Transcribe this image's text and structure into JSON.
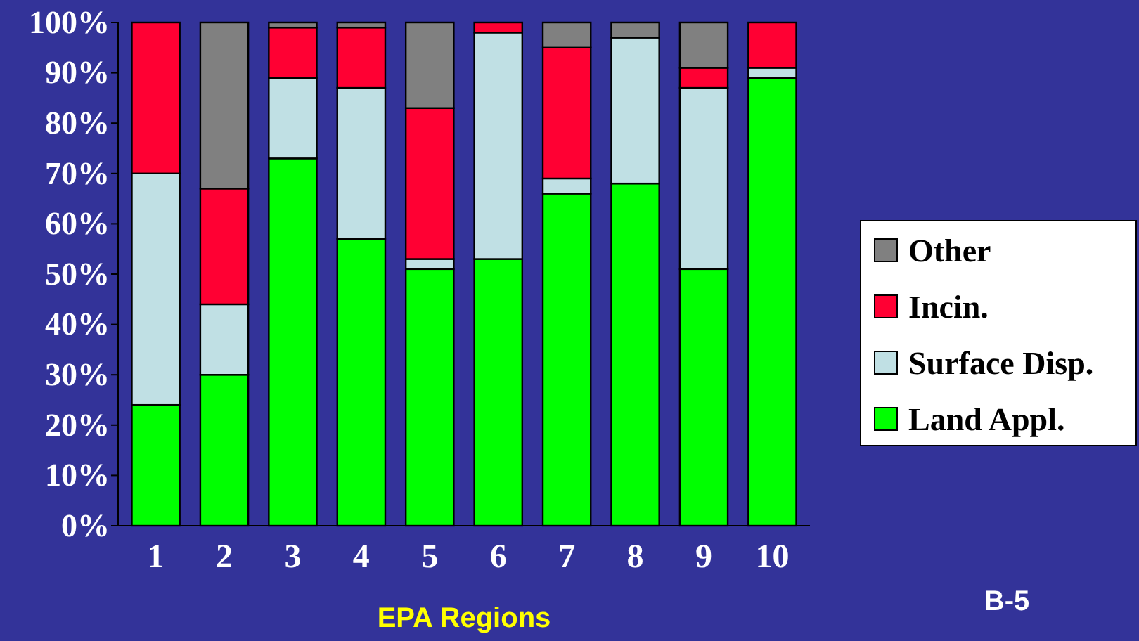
{
  "chart_data": {
    "type": "bar",
    "stacked": true,
    "xlabel": "EPA Regions",
    "annotations": [
      "B-5"
    ],
    "categories": [
      "1",
      "2",
      "3",
      "4",
      "5",
      "6",
      "7",
      "8",
      "9",
      "10"
    ],
    "series": [
      {
        "name": "Land Appl.",
        "color": "#00ff00",
        "values": [
          24,
          30,
          73,
          57,
          51,
          53,
          66,
          68,
          51,
          89
        ]
      },
      {
        "name": "Surface Disp.",
        "color": "#c0e0e4",
        "values": [
          46,
          14,
          16,
          30,
          2,
          45,
          3,
          29,
          36,
          2
        ]
      },
      {
        "name": "Incin.",
        "color": "#ff0033",
        "values": [
          30,
          23,
          10,
          12,
          30,
          2,
          26,
          0,
          4,
          9
        ]
      },
      {
        "name": "Other",
        "color": "#808080",
        "values": [
          0,
          33,
          1,
          1,
          17,
          0,
          5,
          3,
          9,
          0
        ]
      }
    ],
    "ylim": [
      0,
      100
    ],
    "yticks": [
      {
        "value": 0,
        "label": "0%"
      },
      {
        "value": 10,
        "label": "10%"
      },
      {
        "value": 20,
        "label": "20%"
      },
      {
        "value": 30,
        "label": "30%"
      },
      {
        "value": 40,
        "label": "40%"
      },
      {
        "value": 50,
        "label": "50%"
      },
      {
        "value": 60,
        "label": "60%"
      },
      {
        "value": 70,
        "label": "70%"
      },
      {
        "value": 80,
        "label": "80%"
      },
      {
        "value": 90,
        "label": "90%"
      },
      {
        "value": 100,
        "label": "100%"
      }
    ],
    "grid": false,
    "legend": "right"
  }
}
